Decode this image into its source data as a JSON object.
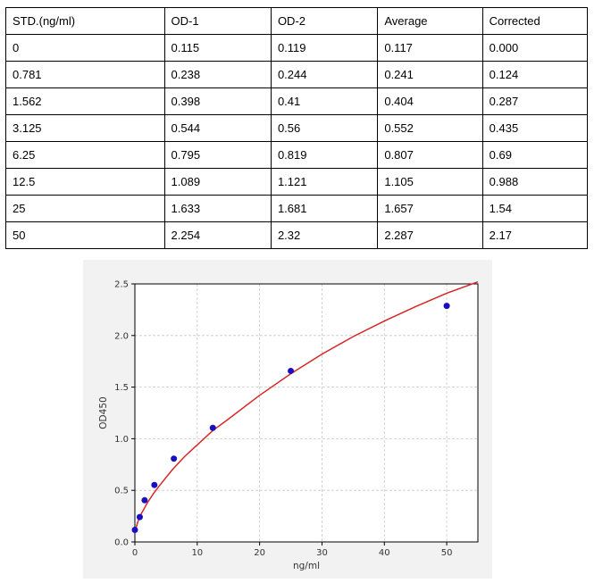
{
  "table": {
    "headers": [
      "STD.(ng/ml)",
      "OD-1",
      "OD-2",
      "Average",
      "Corrected"
    ],
    "rows": [
      [
        "0",
        "0.115",
        "0.119",
        "0.117",
        "0.000"
      ],
      [
        "0.781",
        "0.238",
        "0.244",
        "0.241",
        "0.124"
      ],
      [
        "1.562",
        "0.398",
        "0.41",
        "0.404",
        "0.287"
      ],
      [
        "3.125",
        "0.544",
        "0.56",
        "0.552",
        "0.435"
      ],
      [
        "6.25",
        "0.795",
        "0.819",
        "0.807",
        "0.69"
      ],
      [
        "12.5",
        "1.089",
        "1.121",
        "1.105",
        "0.988"
      ],
      [
        "25",
        "1.633",
        "1.681",
        "1.657",
        "1.54"
      ],
      [
        "50",
        "2.254",
        "2.32",
        "2.287",
        "2.17"
      ]
    ]
  },
  "chart_data": {
    "type": "scatter",
    "xlabel": "ng/ml",
    "ylabel": "OD450",
    "xlim": [
      0,
      55
    ],
    "ylim": [
      0,
      2.5
    ],
    "xticks": [
      "0",
      "10",
      "20",
      "30",
      "40",
      "50"
    ],
    "yticks": [
      "0.0",
      "0.5",
      "1.0",
      "1.5",
      "2.0",
      "2.5"
    ],
    "grid": true,
    "series": [
      {
        "values_x": [
          0,
          0.781,
          1.562,
          3.125,
          6.25,
          12.5,
          25,
          50
        ],
        "values_y": [
          0.117,
          0.241,
          0.404,
          0.552,
          0.807,
          1.105,
          1.657,
          2.287
        ]
      }
    ],
    "fit_curve": {
      "x": [
        0,
        0.5,
        1,
        2,
        3,
        4,
        6,
        8,
        10,
        12.5,
        15,
        20,
        25,
        30,
        35,
        40,
        45,
        50,
        55
      ],
      "y": [
        0.1,
        0.2,
        0.27,
        0.38,
        0.47,
        0.55,
        0.7,
        0.83,
        0.94,
        1.08,
        1.19,
        1.42,
        1.63,
        1.82,
        1.99,
        2.14,
        2.28,
        2.41,
        2.52
      ]
    },
    "colors": {
      "points": "#1a0fbf",
      "curve": "#d62728",
      "grid": "#c8c8c8",
      "panel": "#f2f2f2"
    }
  }
}
